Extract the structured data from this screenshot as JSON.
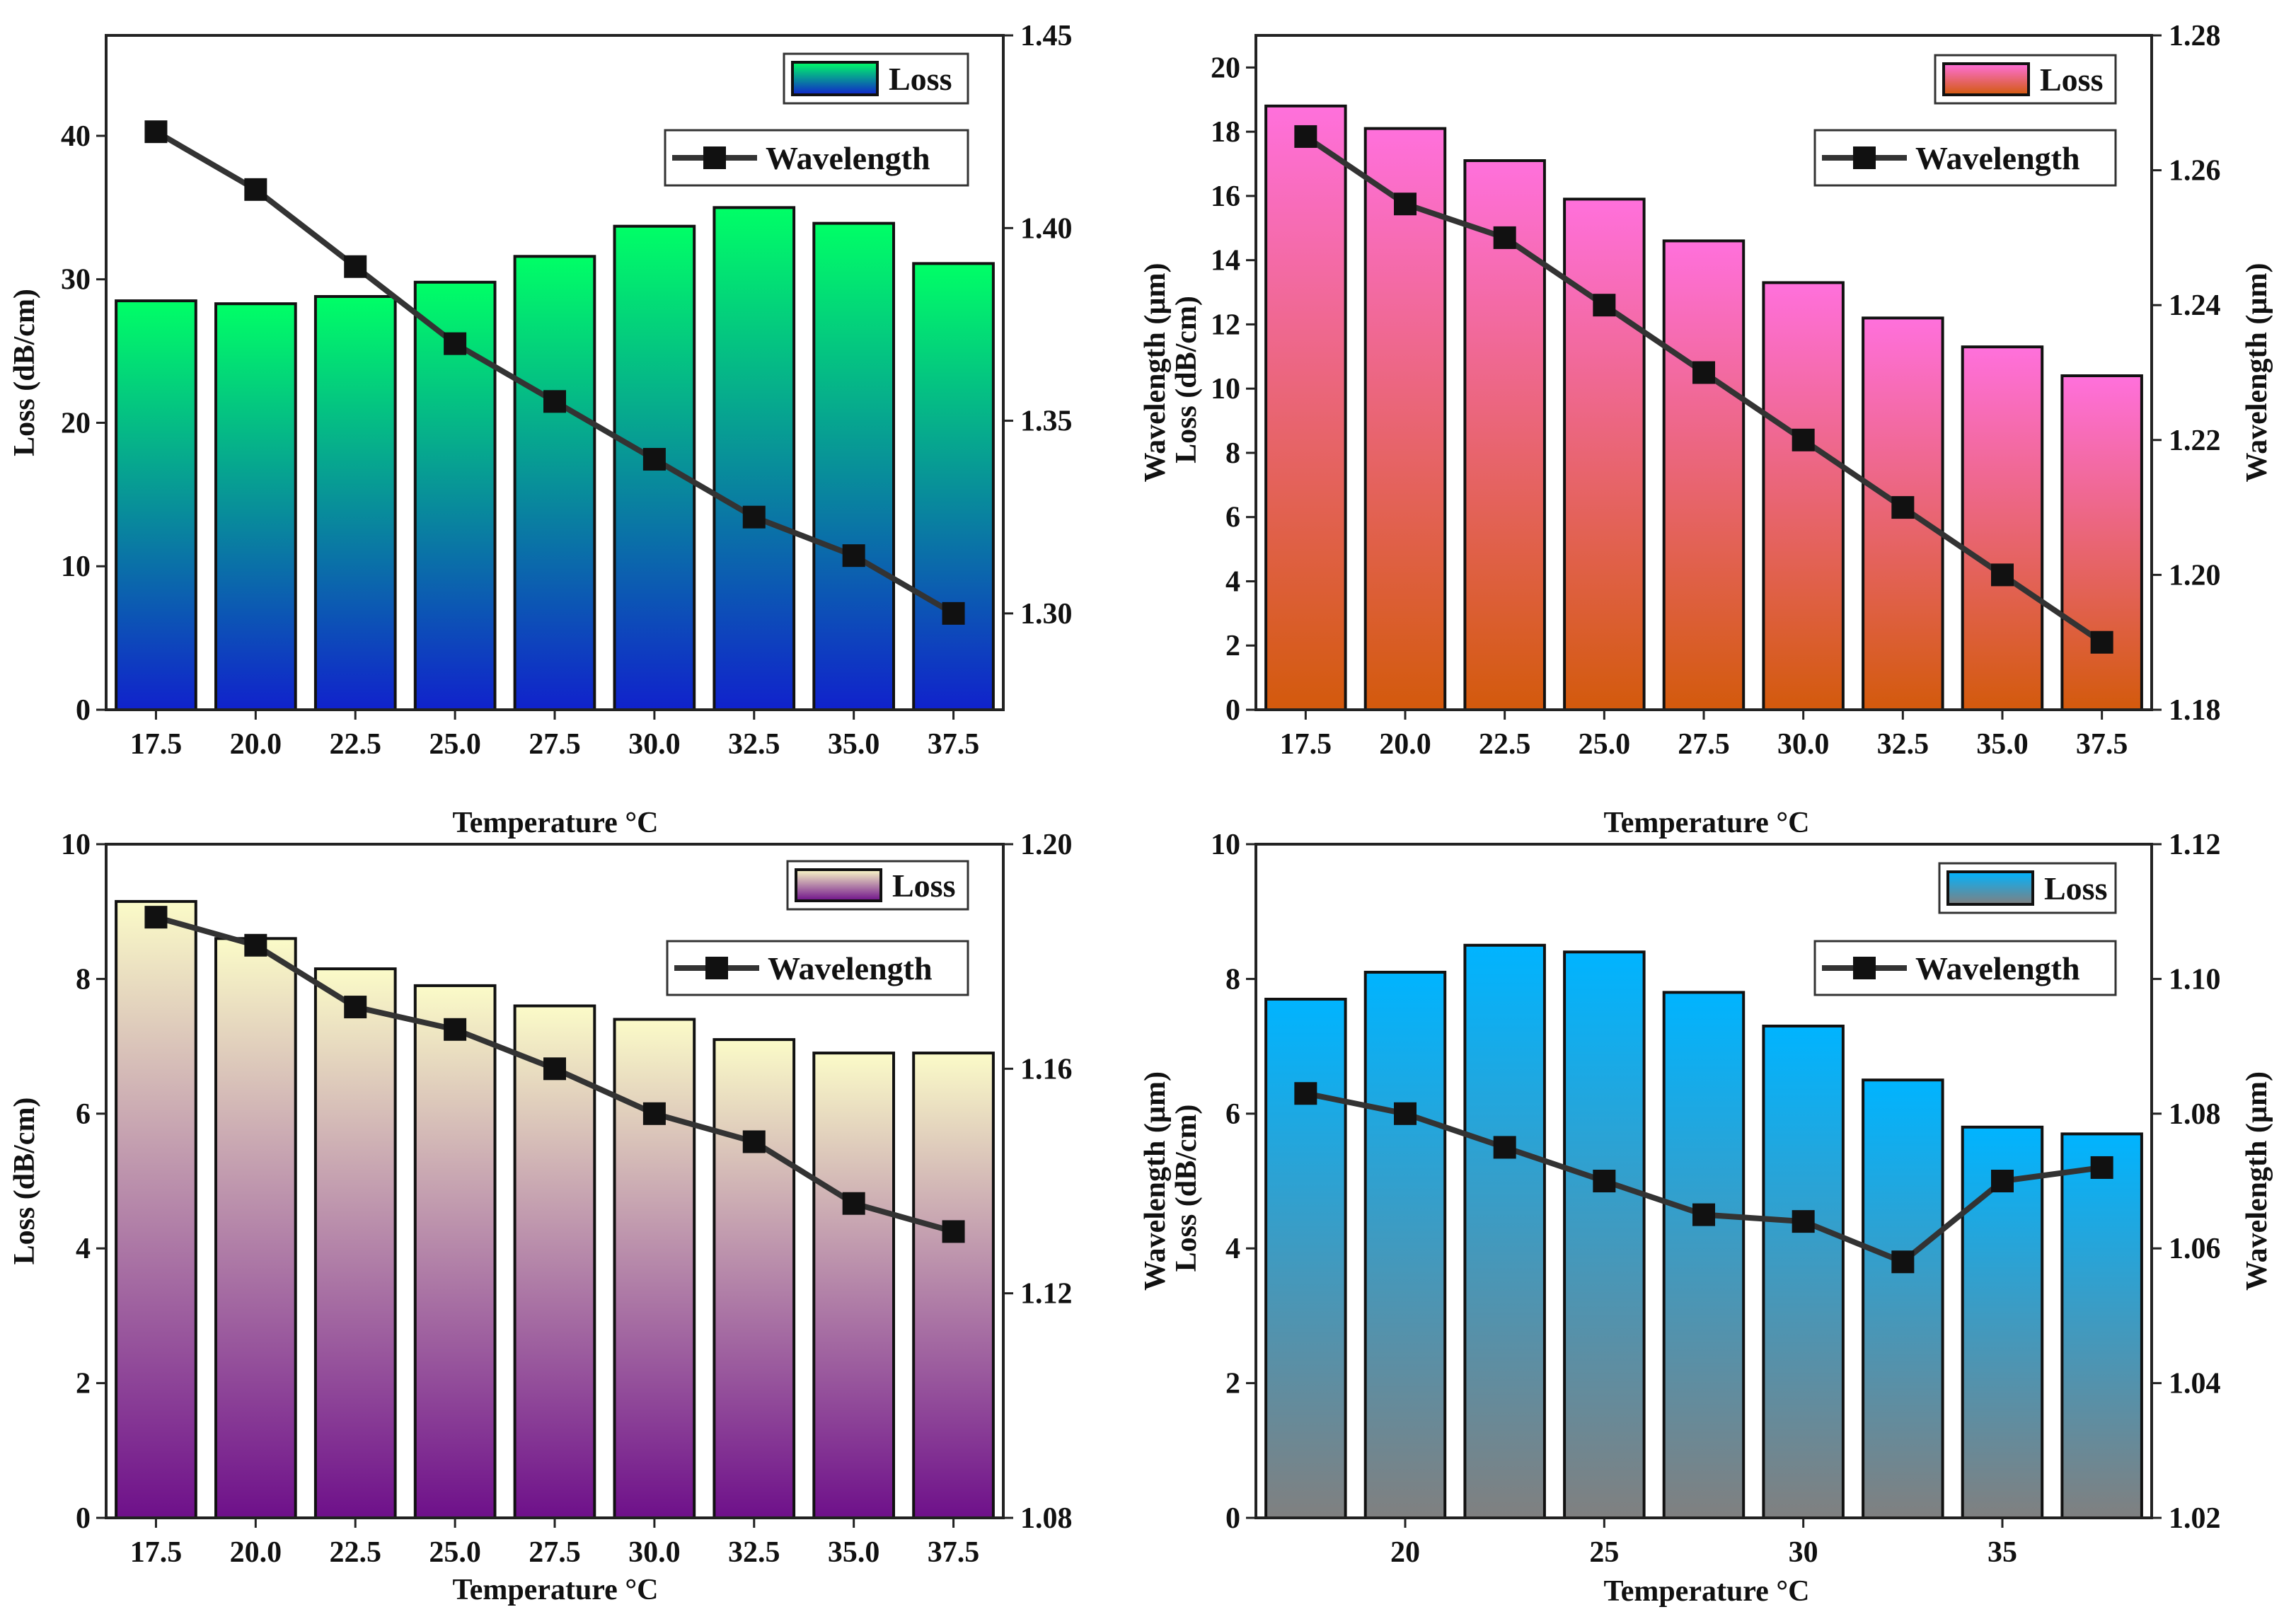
{
  "figure": {
    "description_panels": 4
  },
  "chart_data": [
    {
      "type": "bar",
      "panel": "top-left",
      "categories": [
        "17.5",
        "20.0",
        "22.5",
        "25.0",
        "27.5",
        "30.0",
        "32.5",
        "35.0",
        "37.5"
      ],
      "series": [
        {
          "name": "Loss",
          "axis": "left",
          "type": "bar",
          "values": [
            28.5,
            28.3,
            28.8,
            29.8,
            31.6,
            33.7,
            35.0,
            33.9,
            31.1
          ]
        },
        {
          "name": "Wavelength",
          "axis": "right",
          "type": "line",
          "values": [
            1.425,
            1.41,
            1.39,
            1.37,
            1.355,
            1.34,
            1.325,
            1.315,
            1.3
          ]
        }
      ],
      "xlabel": "Temperature °C",
      "ylabel": "Loss (dB/cm)",
      "y2label": "",
      "ylim": [
        0,
        47
      ],
      "yticks": [
        0,
        10,
        20,
        30,
        40
      ],
      "y2lim": [
        1.275,
        1.45
      ],
      "y2ticks": [
        "1.30",
        "1.35",
        "1.40",
        "1.45"
      ],
      "colors": {
        "bar_top": "#00ff66",
        "bar_bottom": "#1022cc",
        "line": "#333333"
      },
      "legend": {
        "loss": "Loss",
        "wavelength": "Wavelength",
        "position": "top-right"
      }
    },
    {
      "type": "bar",
      "panel": "top-right",
      "categories": [
        "17.5",
        "20.0",
        "22.5",
        "25.0",
        "27.5",
        "30.0",
        "32.5",
        "35.0",
        "37.5"
      ],
      "series": [
        {
          "name": "Loss",
          "axis": "left",
          "type": "bar",
          "values": [
            18.8,
            18.1,
            17.1,
            15.9,
            14.6,
            13.3,
            12.2,
            11.3,
            10.4
          ]
        },
        {
          "name": "Wavelength",
          "axis": "right",
          "type": "line",
          "values": [
            1.265,
            1.255,
            1.25,
            1.24,
            1.23,
            1.22,
            1.21,
            1.2,
            1.19
          ]
        }
      ],
      "xlabel": "Temperature °C",
      "ylabel": "Wavelength (µm)",
      "ylabel2": "Loss (dB/cm)",
      "y2label": "Wavelength (µm)",
      "ylim": [
        0,
        21
      ],
      "yticks": [
        0,
        2,
        4,
        6,
        8,
        10,
        12,
        14,
        16,
        18,
        20
      ],
      "y2lim": [
        1.18,
        1.28
      ],
      "y2ticks": [
        "1.18",
        "1.20",
        "1.22",
        "1.24",
        "1.26",
        "1.28"
      ],
      "colors": {
        "bar_top": "#ff70dc",
        "bar_bottom": "#d35a0c",
        "line": "#333333"
      },
      "legend": {
        "loss": "Loss",
        "wavelength": "Wavelength",
        "position": "top-right"
      }
    },
    {
      "type": "bar",
      "panel": "bottom-left",
      "categories": [
        "17.5",
        "20.0",
        "22.5",
        "25.0",
        "27.5",
        "30.0",
        "32.5",
        "35.0",
        "37.5"
      ],
      "series": [
        {
          "name": "Loss",
          "axis": "left",
          "type": "bar",
          "values": [
            9.15,
            8.6,
            8.15,
            7.9,
            7.6,
            7.4,
            7.1,
            6.9,
            6.9
          ]
        },
        {
          "name": "Wavelength",
          "axis": "right",
          "type": "line",
          "values": [
            1.187,
            1.182,
            1.171,
            1.167,
            1.16,
            1.152,
            1.147,
            1.136,
            1.131
          ]
        }
      ],
      "xlabel": "Temperature °C",
      "ylabel": "Loss (dB/cm)",
      "y2label": "",
      "ylim": [
        0,
        10
      ],
      "yticks": [
        0,
        2,
        4,
        6,
        8,
        10
      ],
      "y2lim": [
        1.08,
        1.2
      ],
      "y2ticks": [
        "1.08",
        "1.12",
        "1.16",
        "1.20"
      ],
      "colors": {
        "bar_top": "#fbfbc8",
        "bar_bottom": "#6e108a",
        "line": "#333333"
      },
      "legend": {
        "loss": "Loss",
        "wavelength": "Wavelength",
        "position": "top-right"
      }
    },
    {
      "type": "bar",
      "panel": "bottom-right",
      "categories": [
        "17.5",
        "20",
        "22.5",
        "25",
        "27.5",
        "30",
        "32.5",
        "35",
        "37.5"
      ],
      "x": [
        17.5,
        20,
        22.5,
        25,
        27.5,
        30,
        32.5,
        35,
        37.5
      ],
      "xticks": [
        "20",
        "25",
        "30",
        "35"
      ],
      "series": [
        {
          "name": "Loss",
          "axis": "left",
          "type": "bar",
          "values": [
            7.7,
            8.1,
            8.5,
            8.4,
            7.8,
            7.3,
            6.5,
            5.8,
            5.7
          ]
        },
        {
          "name": "Wavelength",
          "axis": "right",
          "type": "line",
          "values": [
            1.083,
            1.08,
            1.075,
            1.07,
            1.065,
            1.064,
            1.058,
            1.07,
            1.072
          ]
        }
      ],
      "xlabel": "Temperature °C",
      "ylabel": "Wavelength (µm)",
      "ylabel2": "Loss (dB/cm)",
      "y2label": "Wavelength (µm)",
      "ylim": [
        0,
        10
      ],
      "yticks": [
        0,
        2,
        4,
        6,
        8,
        10
      ],
      "y2lim": [
        1.02,
        1.12
      ],
      "y2ticks": [
        "1.02",
        "1.04",
        "1.06",
        "1.08",
        "1.10",
        "1.12"
      ],
      "colors": {
        "bar_top": "#00b4ff",
        "bar_bottom": "#808080",
        "line": "#333333"
      },
      "legend": {
        "loss": "Loss",
        "wavelength": "Wavelength",
        "position": "top-right"
      }
    }
  ]
}
